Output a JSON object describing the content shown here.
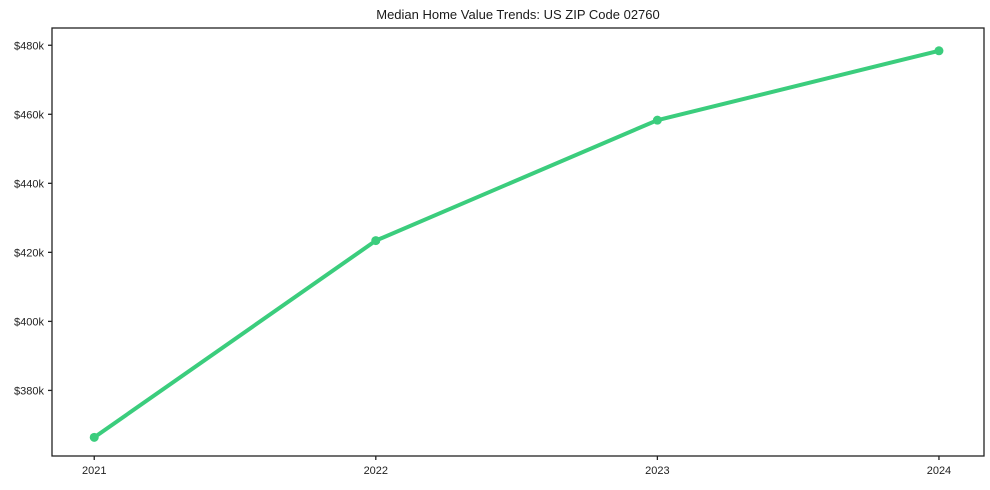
{
  "title": "Median Home Value Trends: US ZIP Code 02760",
  "colors": {
    "line": "#3bcd7d",
    "axis": "#222222",
    "text": "#1a1a1a",
    "background": "#ffffff"
  },
  "chart_data": {
    "type": "line",
    "title": "Median Home Value Trends: US ZIP Code 02760",
    "x": [
      2021,
      2022,
      2023,
      2024
    ],
    "x_tick_labels": [
      "2021",
      "2022",
      "2023",
      "2024"
    ],
    "series": [
      {
        "name": "median-home-value",
        "values": [
          366400,
          423400,
          458300,
          478400
        ],
        "color": "#3bcd7d",
        "marker": "circle",
        "line_width": 4
      }
    ],
    "y_ticks": [
      380000,
      400000,
      420000,
      440000,
      460000,
      480000
    ],
    "y_tick_labels": [
      "$380k",
      "$400k",
      "$420k",
      "$440k",
      "$460k",
      "$480k"
    ],
    "xlim": [
      2020.85,
      2024.16
    ],
    "ylim": [
      361000,
      485000
    ],
    "grid": false,
    "legend": "none"
  }
}
